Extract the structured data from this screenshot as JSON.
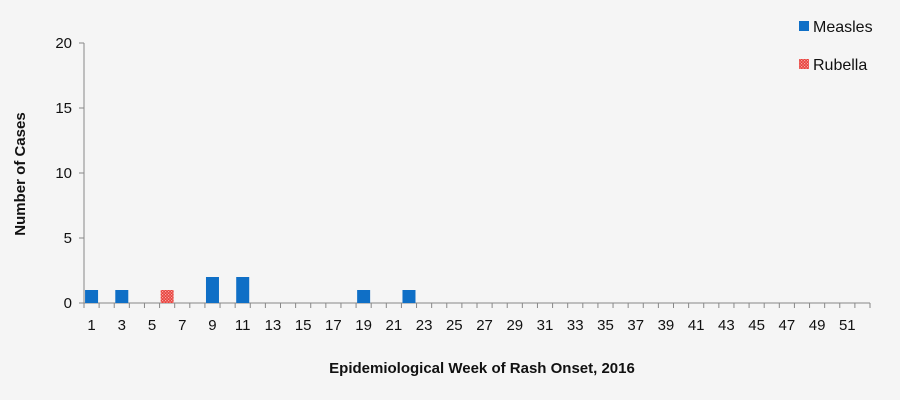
{
  "chart_data": {
    "type": "bar",
    "title": "",
    "xlabel": "Epidemiological Week of Rash Onset, 2016",
    "ylabel": "Number of Cases",
    "ylim": [
      0,
      20
    ],
    "yticks": [
      0,
      5,
      10,
      15,
      20
    ],
    "weeks": [
      1,
      52
    ],
    "xtick_labels": [
      "1",
      "3",
      "5",
      "7",
      "9",
      "11",
      "13",
      "15",
      "17",
      "19",
      "21",
      "23",
      "25",
      "27",
      "29",
      "31",
      "33",
      "35",
      "37",
      "39",
      "41",
      "43",
      "45",
      "47",
      "49",
      "51"
    ],
    "grid": false,
    "legend_position": "top-right",
    "series": [
      {
        "name": "Measles",
        "color": "#0f6fc6",
        "pattern": "solid",
        "points": [
          {
            "week": 1,
            "value": 1
          },
          {
            "week": 3,
            "value": 1
          },
          {
            "week": 9,
            "value": 2
          },
          {
            "week": 11,
            "value": 2
          },
          {
            "week": 19,
            "value": 1
          },
          {
            "week": 22,
            "value": 1
          }
        ]
      },
      {
        "name": "Rubella",
        "color": "#e8413c",
        "pattern": "dotted",
        "points": [
          {
            "week": 6,
            "value": 1
          }
        ]
      }
    ]
  }
}
